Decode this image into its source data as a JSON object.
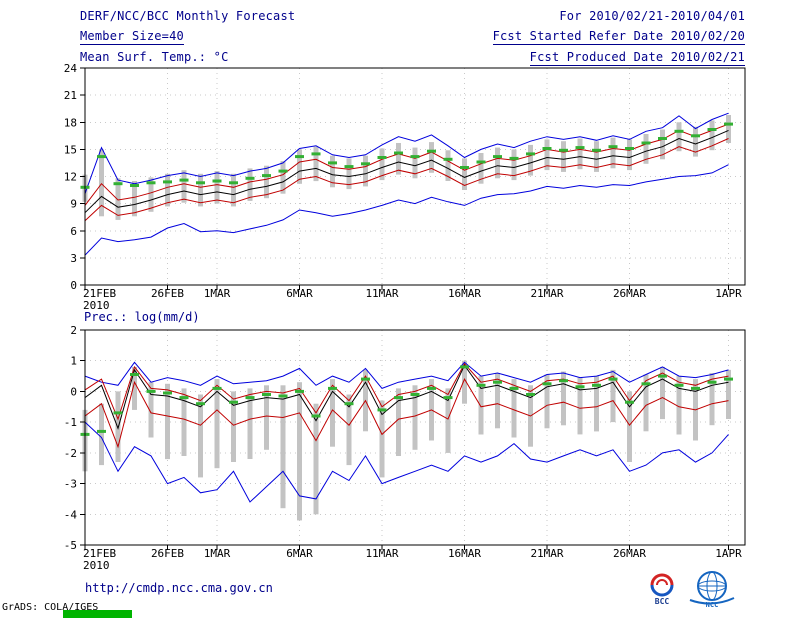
{
  "header": {
    "title": "DERF/NCC/BCC Monthly Forecast",
    "member_size": "Member Size=40",
    "for_range": "For 2010/02/21-2010/04/01",
    "fcst_started": "Fcst Started Refer Date 2010/02/20",
    "fcst_produced": "Fcst Produced Date 2010/02/21"
  },
  "footer": {
    "url": "http://cmdp.ncc.cma.gov.cn",
    "grads": "GrADS: COLA/IGES",
    "bcc_label": "BCC",
    "ncc_label": "NCC"
  },
  "colors": {
    "header_text": "#00008b",
    "axis_text": "#000000",
    "frame": "#000000",
    "grid": "#c9c9c9",
    "bar": "#c3c3c3",
    "max_min": "#0000dd",
    "quartile": "#c00000",
    "mean": "#000000",
    "marker": "#33b033",
    "footer_block": "#00b400"
  },
  "chart_data": [
    {
      "type": "line",
      "title": "Mean Surf. Temp.: °C",
      "xlabel": "",
      "ylabel": "",
      "ylim": [
        0,
        24
      ],
      "yticks": [
        0,
        3,
        6,
        9,
        12,
        15,
        18,
        21,
        24
      ],
      "grid": "dotted",
      "legend": "none",
      "x": {
        "n_days": 40,
        "axis_days": 41,
        "year_label": "2010",
        "ticks": [
          {
            "day": 0,
            "label": "21FEB"
          },
          {
            "day": 5,
            "label": "26FEB"
          },
          {
            "day": 8,
            "label": "1MAR"
          },
          {
            "day": 13,
            "label": "6MAR"
          },
          {
            "day": 18,
            "label": "11MAR"
          },
          {
            "day": 23,
            "label": "16MAR"
          },
          {
            "day": 28,
            "label": "21MAR"
          },
          {
            "day": 33,
            "label": "26MAR"
          },
          {
            "day": 39,
            "label": "1APR"
          }
        ]
      },
      "series": [
        {
          "name": "upper-blue",
          "color_key": "max_min",
          "values": [
            10.1,
            15.2,
            11.6,
            11.2,
            11.6,
            12.1,
            12.4,
            12.0,
            12.4,
            12.1,
            12.6,
            12.9,
            13.5,
            15.1,
            15.4,
            14.4,
            14.1,
            14.4,
            15.5,
            16.4,
            15.9,
            16.6,
            15.4,
            14.1,
            15.0,
            15.6,
            15.2,
            15.9,
            16.4,
            16.1,
            16.4,
            16.0,
            16.5,
            16.1,
            17.0,
            17.4,
            18.7,
            17.3,
            18.3,
            19.0
          ]
        },
        {
          "name": "upper-red",
          "color_key": "quartile",
          "values": [
            8.8,
            11.2,
            9.4,
            9.7,
            10.2,
            10.8,
            11.2,
            10.8,
            11.1,
            10.8,
            11.4,
            11.7,
            12.2,
            13.6,
            13.9,
            13.0,
            12.8,
            13.1,
            13.9,
            14.5,
            14.0,
            14.7,
            13.7,
            12.7,
            13.4,
            14.0,
            13.8,
            14.3,
            15.0,
            14.7,
            15.0,
            14.7,
            15.1,
            14.9,
            15.6,
            16.1,
            17.1,
            16.4,
            17.1,
            17.8
          ]
        },
        {
          "name": "middle-black",
          "color_key": "mean",
          "values": [
            8.0,
            9.8,
            8.6,
            8.9,
            9.4,
            10.0,
            10.4,
            10.0,
            10.3,
            10.0,
            10.6,
            10.9,
            11.4,
            12.6,
            12.9,
            12.2,
            12.0,
            12.3,
            13.0,
            13.6,
            13.2,
            13.8,
            12.9,
            11.9,
            12.6,
            13.2,
            13.0,
            13.5,
            14.1,
            13.9,
            14.2,
            13.9,
            14.3,
            14.1,
            14.8,
            15.3,
            16.2,
            15.6,
            16.3,
            17.1
          ]
        },
        {
          "name": "lower-red",
          "color_key": "quartile",
          "values": [
            7.1,
            8.8,
            7.7,
            8.0,
            8.5,
            9.1,
            9.5,
            9.1,
            9.4,
            9.1,
            9.7,
            10.0,
            10.5,
            11.7,
            12.0,
            11.3,
            11.1,
            11.4,
            12.1,
            12.7,
            12.3,
            12.9,
            12.0,
            11.0,
            11.7,
            12.3,
            12.1,
            12.6,
            13.2,
            13.0,
            13.3,
            13.0,
            13.4,
            13.2,
            13.9,
            14.4,
            15.3,
            14.7,
            15.4,
            16.2
          ]
        },
        {
          "name": "lower-blue",
          "color_key": "max_min",
          "values": [
            3.3,
            5.2,
            4.8,
            5.0,
            5.3,
            6.3,
            6.8,
            5.9,
            6.0,
            5.8,
            6.2,
            6.6,
            7.2,
            8.3,
            8.0,
            7.6,
            7.9,
            8.3,
            8.8,
            9.4,
            9.0,
            9.7,
            9.2,
            8.8,
            9.6,
            10.0,
            10.1,
            10.4,
            10.9,
            10.7,
            11.0,
            10.8,
            11.1,
            11.0,
            11.4,
            11.7,
            12.0,
            12.1,
            12.4,
            13.3
          ]
        }
      ],
      "spread_bars": {
        "low": [
          9.2,
          7.6,
          7.2,
          7.6,
          8.1,
          8.7,
          9.1,
          8.7,
          9.0,
          8.7,
          9.3,
          9.6,
          10.1,
          11.2,
          11.5,
          10.8,
          10.6,
          10.9,
          11.6,
          12.2,
          11.8,
          12.4,
          11.5,
          10.5,
          11.2,
          11.8,
          11.6,
          12.1,
          12.7,
          12.5,
          12.8,
          12.5,
          12.9,
          12.7,
          13.4,
          13.9,
          14.8,
          14.2,
          14.9,
          15.7
        ],
        "high": [
          12.2,
          15.0,
          11.8,
          11.5,
          11.9,
          12.3,
          12.7,
          12.3,
          12.6,
          12.3,
          12.9,
          13.2,
          13.7,
          15.0,
          15.3,
          14.3,
          14.0,
          14.3,
          15.1,
          15.7,
          15.2,
          15.8,
          14.9,
          14.0,
          14.6,
          15.2,
          15.0,
          15.5,
          16.1,
          15.9,
          16.2,
          15.9,
          16.3,
          16.1,
          16.7,
          17.2,
          18.0,
          17.5,
          18.2,
          18.8
        ]
      },
      "markers": {
        "name": "green-dash-marker",
        "values": [
          10.8,
          14.2,
          11.2,
          11.0,
          11.3,
          11.4,
          11.6,
          11.3,
          11.5,
          11.3,
          11.8,
          12.1,
          12.6,
          14.2,
          14.5,
          13.5,
          13.1,
          13.4,
          14.1,
          14.6,
          14.2,
          14.8,
          13.9,
          13.0,
          13.6,
          14.2,
          14.0,
          14.5,
          15.1,
          14.9,
          15.2,
          14.9,
          15.3,
          15.1,
          15.7,
          16.2,
          17.0,
          16.5,
          17.2,
          17.8
        ]
      }
    },
    {
      "type": "line",
      "title": "Prec.: log(mm/d)",
      "xlabel": "",
      "ylabel": "",
      "ylim": [
        -5,
        2
      ],
      "yticks": [
        -5,
        -4,
        -3,
        -2,
        -1,
        0,
        1,
        2
      ],
      "grid": "dotted",
      "legend": "none",
      "x": {
        "n_days": 40,
        "axis_days": 41,
        "year_label": "2010",
        "ticks": [
          {
            "day": 0,
            "label": "21FEB"
          },
          {
            "day": 5,
            "label": "26FEB"
          },
          {
            "day": 8,
            "label": "1MAR"
          },
          {
            "day": 13,
            "label": "6MAR"
          },
          {
            "day": 18,
            "label": "11MAR"
          },
          {
            "day": 23,
            "label": "16MAR"
          },
          {
            "day": 28,
            "label": "21MAR"
          },
          {
            "day": 33,
            "label": "26MAR"
          },
          {
            "day": 39,
            "label": "1APR"
          }
        ]
      },
      "series": [
        {
          "name": "upper-blue",
          "color_key": "max_min",
          "values": [
            0.5,
            0.3,
            0.2,
            0.95,
            0.3,
            0.45,
            0.35,
            0.2,
            0.5,
            0.25,
            0.3,
            0.35,
            0.5,
            0.75,
            0.2,
            0.5,
            0.3,
            0.75,
            0.1,
            0.3,
            0.4,
            0.5,
            0.35,
            0.95,
            0.5,
            0.6,
            0.45,
            0.3,
            0.55,
            0.6,
            0.45,
            0.5,
            0.65,
            0.3,
            0.55,
            0.8,
            0.5,
            0.45,
            0.55,
            0.7
          ]
        },
        {
          "name": "upper-red",
          "color_key": "quartile",
          "values": [
            0.05,
            0.4,
            -0.9,
            0.8,
            0.1,
            0.05,
            -0.1,
            -0.3,
            0.2,
            -0.25,
            -0.1,
            0.0,
            -0.05,
            0.1,
            -0.7,
            0.2,
            -0.3,
            0.5,
            -0.5,
            -0.1,
            0.0,
            0.2,
            -0.1,
            0.9,
            0.3,
            0.4,
            0.2,
            0.0,
            0.35,
            0.4,
            0.25,
            0.3,
            0.5,
            -0.3,
            0.35,
            0.6,
            0.3,
            0.2,
            0.4,
            0.5
          ]
        },
        {
          "name": "middle-black",
          "color_key": "mean",
          "values": [
            -0.2,
            0.2,
            -1.2,
            0.7,
            -0.1,
            -0.15,
            -0.3,
            -0.5,
            0.0,
            -0.45,
            -0.3,
            -0.2,
            -0.25,
            -0.1,
            -0.95,
            0.0,
            -0.5,
            0.3,
            -0.75,
            -0.3,
            -0.2,
            0.0,
            -0.3,
            0.85,
            0.1,
            0.2,
            0.0,
            -0.2,
            0.15,
            0.25,
            0.05,
            0.1,
            0.3,
            -0.5,
            0.15,
            0.4,
            0.1,
            0.0,
            0.2,
            0.3
          ]
        },
        {
          "name": "lower-red",
          "color_key": "quartile",
          "values": [
            -0.8,
            -0.4,
            -1.8,
            0.3,
            -0.7,
            -0.8,
            -0.9,
            -1.1,
            -0.6,
            -1.1,
            -0.9,
            -0.8,
            -0.85,
            -0.7,
            -1.6,
            -0.6,
            -1.1,
            -0.3,
            -1.4,
            -0.9,
            -0.8,
            -0.6,
            -0.9,
            0.4,
            -0.5,
            -0.4,
            -0.6,
            -0.8,
            -0.45,
            -0.35,
            -0.55,
            -0.5,
            -0.3,
            -1.1,
            -0.45,
            -0.2,
            -0.5,
            -0.6,
            -0.4,
            -0.3
          ]
        },
        {
          "name": "lower-blue",
          "color_key": "max_min",
          "values": [
            -1.0,
            -1.5,
            -2.6,
            -1.8,
            -2.1,
            -3.0,
            -2.8,
            -3.3,
            -3.2,
            -2.6,
            -3.6,
            -3.1,
            -2.6,
            -3.4,
            -3.5,
            -2.6,
            -2.9,
            -2.1,
            -3.0,
            -2.8,
            -2.6,
            -2.4,
            -2.6,
            -2.1,
            -2.3,
            -2.1,
            -1.7,
            -2.2,
            -2.3,
            -2.1,
            -1.9,
            -2.1,
            -1.9,
            -2.6,
            -2.4,
            -2.0,
            -1.9,
            -2.3,
            -2.0,
            -1.4
          ]
        }
      ],
      "spread_bars": {
        "low": [
          -2.6,
          -2.4,
          -2.3,
          -0.6,
          -1.5,
          -2.2,
          -2.1,
          -2.8,
          -2.5,
          -2.3,
          -2.2,
          -1.9,
          -3.8,
          -4.2,
          -4.0,
          -1.8,
          -2.4,
          -1.3,
          -2.8,
          -2.1,
          -1.9,
          -1.6,
          -2.0,
          -0.4,
          -1.4,
          -1.2,
          -1.5,
          -1.8,
          -1.2,
          -1.1,
          -1.4,
          -1.3,
          -1.0,
          -2.3,
          -1.3,
          -0.9,
          -1.4,
          -1.6,
          -1.1,
          -0.9
        ],
        "high": [
          -0.6,
          -0.4,
          0.0,
          0.8,
          0.3,
          0.25,
          0.1,
          -0.1,
          0.4,
          0.0,
          0.1,
          0.2,
          0.2,
          0.3,
          -0.4,
          0.4,
          -0.1,
          0.7,
          -0.3,
          0.1,
          0.2,
          0.4,
          0.1,
          1.0,
          0.5,
          0.6,
          0.4,
          0.2,
          0.55,
          0.65,
          0.45,
          0.5,
          0.7,
          0.0,
          0.55,
          0.8,
          0.5,
          0.4,
          0.6,
          0.7
        ]
      },
      "markers": {
        "name": "green-dash-marker",
        "values": [
          -1.4,
          -1.3,
          -0.7,
          0.55,
          0.0,
          -0.05,
          -0.2,
          -0.4,
          0.1,
          -0.35,
          -0.2,
          -0.1,
          -0.15,
          0.0,
          -0.8,
          0.1,
          -0.4,
          0.4,
          -0.6,
          -0.2,
          -0.1,
          0.1,
          -0.2,
          0.8,
          0.2,
          0.3,
          0.1,
          -0.1,
          0.25,
          0.35,
          0.15,
          0.2,
          0.4,
          -0.35,
          0.25,
          0.5,
          0.2,
          0.1,
          0.3,
          0.4
        ]
      }
    }
  ]
}
